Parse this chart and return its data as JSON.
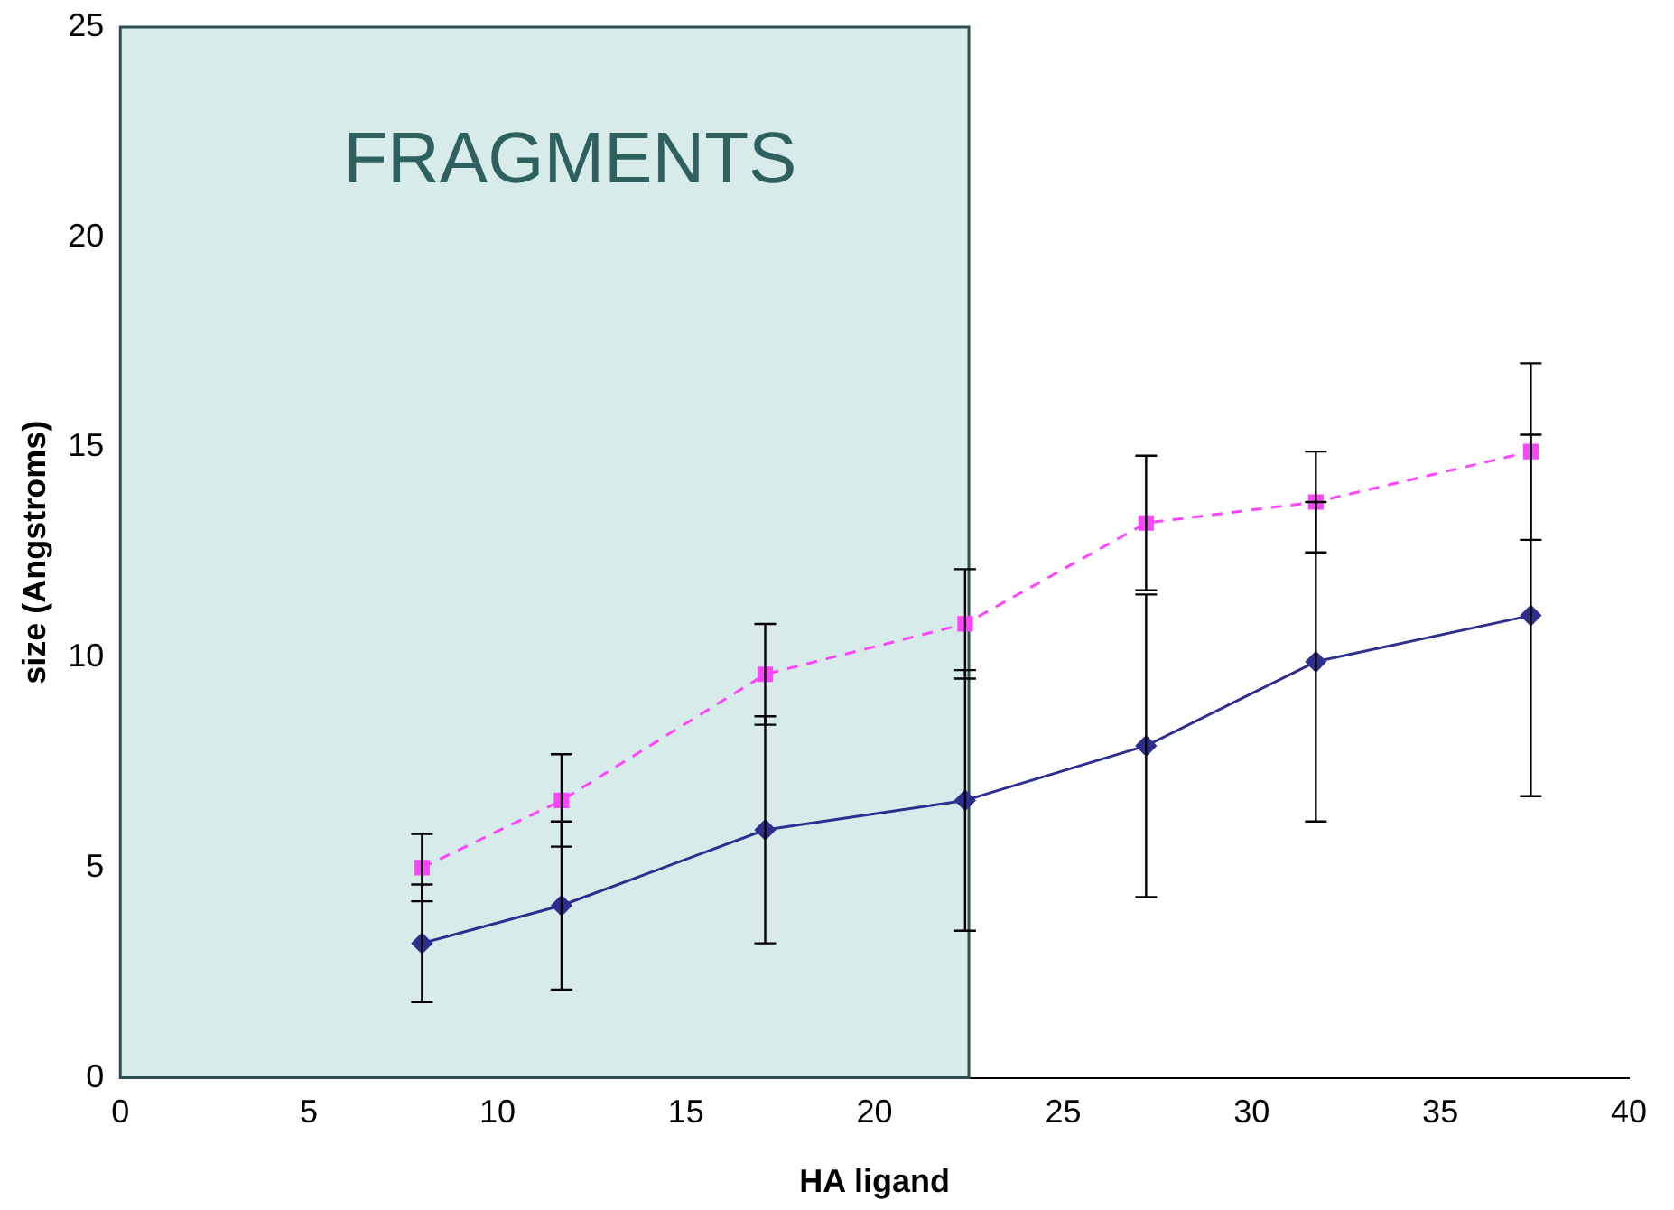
{
  "chart_data": {
    "type": "line",
    "xlabel": "HA ligand",
    "ylabel": "size (Angstroms)",
    "xlim": [
      0,
      40
    ],
    "xticks": [
      0,
      5,
      10,
      15,
      20,
      25,
      30,
      35,
      40
    ],
    "ylim": [
      0,
      25
    ],
    "yticks": [
      0,
      5,
      10,
      15,
      20,
      25
    ],
    "grid": false,
    "bands": [
      {
        "axis": "x",
        "from": 0,
        "to": 22.5,
        "label": "FRAGMENTS",
        "color": "#d6ebea"
      }
    ],
    "series": [
      {
        "color": "#2e2e8f",
        "marker": "diamond",
        "line_style": "solid",
        "x": [
          8.0,
          11.7,
          17.1,
          22.4,
          27.2,
          31.7,
          37.4
        ],
        "values": [
          3.2,
          4.1,
          5.9,
          6.6,
          7.9,
          9.9,
          11.0
        ],
        "errors": [
          1.4,
          2.0,
          2.7,
          3.1,
          3.6,
          3.8,
          4.3
        ]
      },
      {
        "color": "#ff44ff",
        "marker": "square",
        "line_style": "dashed",
        "x": [
          8.0,
          11.7,
          17.1,
          22.4,
          27.2,
          31.7,
          37.4
        ],
        "values": [
          5.0,
          6.6,
          9.6,
          10.8,
          13.2,
          13.7,
          14.9
        ],
        "errors": [
          0.8,
          1.1,
          1.2,
          1.3,
          1.6,
          1.2,
          2.1
        ]
      }
    ]
  }
}
